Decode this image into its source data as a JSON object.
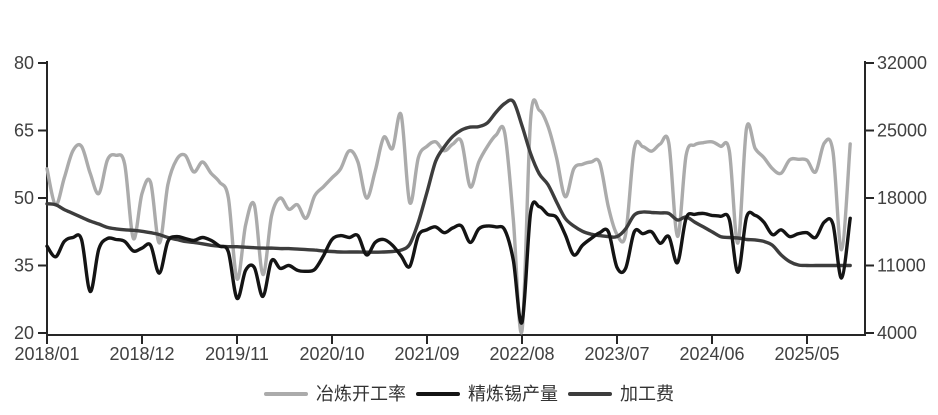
{
  "colors": {
    "axis": "#262626",
    "tick_label": "#404040",
    "series_gray": "#ababab",
    "series_black": "#141414",
    "series_darkgray": "#3d3d3d",
    "background": "#ffffff"
  },
  "chart_data": {
    "type": "line",
    "title": "",
    "grid": false,
    "legend_position": "bottom",
    "x_tick_labels": [
      "2018/01",
      "2018/12",
      "2019/11",
      "2020/10",
      "2021/09",
      "2022/08",
      "2023/07",
      "2024/06",
      "2025/05"
    ],
    "left_axis": {
      "ticks": [
        80,
        65,
        50,
        35,
        20
      ],
      "range": [
        20,
        80
      ]
    },
    "right_axis": {
      "ticks": [
        32000,
        25000,
        18000,
        11000,
        4000
      ],
      "range": [
        4000,
        32000
      ]
    },
    "months": [
      "2018/01",
      "2018/02",
      "2018/03",
      "2018/04",
      "2018/05",
      "2018/06",
      "2018/07",
      "2018/08",
      "2018/09",
      "2018/10",
      "2018/11",
      "2018/12",
      "2019/01",
      "2019/02",
      "2019/03",
      "2019/04",
      "2019/05",
      "2019/06",
      "2019/07",
      "2019/08",
      "2019/09",
      "2019/10",
      "2019/11",
      "2019/12",
      "2020/01",
      "2020/02",
      "2020/03",
      "2020/04",
      "2020/05",
      "2020/06",
      "2020/07",
      "2020/08",
      "2020/09",
      "2020/10",
      "2020/11",
      "2020/12",
      "2021/01",
      "2021/02",
      "2021/03",
      "2021/04",
      "2021/05",
      "2021/06",
      "2021/07",
      "2021/08",
      "2021/09",
      "2021/10",
      "2021/11",
      "2021/12",
      "2022/01",
      "2022/02",
      "2022/03",
      "2022/04",
      "2022/05",
      "2022/06",
      "2022/07",
      "2022/08",
      "2022/09",
      "2022/10",
      "2022/11",
      "2022/12",
      "2023/01",
      "2023/02",
      "2023/03",
      "2023/04",
      "2023/05",
      "2023/06",
      "2023/07",
      "2023/08",
      "2023/09",
      "2023/10",
      "2023/11",
      "2023/12",
      "2024/01",
      "2024/02",
      "2024/03",
      "2024/04",
      "2024/05",
      "2024/06",
      "2024/07",
      "2024/08",
      "2024/09",
      "2024/10",
      "2024/11",
      "2024/12",
      "2025/01",
      "2025/02",
      "2025/03",
      "2025/04",
      "2025/05",
      "2025/06",
      "2025/07",
      "2025/08",
      "2025/09",
      "2025/10"
    ],
    "series": [
      {
        "name": "冶炼开工率",
        "axis": "left",
        "color": "#ababab",
        "values": [
          56.5,
          48.5,
          54.5,
          60.5,
          61.5,
          55.5,
          51.0,
          58.5,
          59.5,
          57.5,
          41.0,
          51.0,
          53.5,
          40.0,
          53.0,
          58.5,
          59.5,
          55.8,
          58.0,
          55.5,
          53.5,
          50.0,
          32.0,
          44.0,
          48.5,
          33.0,
          46.0,
          50.0,
          47.5,
          48.5,
          45.5,
          50.5,
          52.5,
          54.5,
          56.5,
          60.5,
          58.0,
          50.0,
          56.0,
          63.5,
          61.0,
          68.5,
          49.0,
          59.0,
          61.5,
          62.5,
          60.5,
          62.0,
          62.5,
          52.5,
          58.0,
          61.5,
          64.0,
          64.5,
          45.0,
          20.5,
          67.5,
          69.5,
          66.0,
          59.0,
          50.3,
          56.5,
          57.5,
          58.0,
          57.8,
          48.0,
          41.9,
          41.9,
          61.0,
          61.4,
          60.4,
          62.0,
          62.2,
          41.5,
          59.5,
          61.8,
          62.3,
          62.5,
          61.5,
          60.5,
          40.0,
          65.5,
          61.0,
          59.0,
          56.5,
          55.5,
          58.5,
          58.6,
          58.4,
          55.8,
          62.2,
          60.4,
          38.5,
          62.0
        ]
      },
      {
        "name": "精炼锡产量",
        "axis": "right",
        "color": "#141414",
        "values": [
          13000,
          11900,
          13500,
          13900,
          13700,
          8300,
          12700,
          13800,
          13700,
          13500,
          12500,
          12800,
          13100,
          10200,
          13500,
          14000,
          13800,
          13600,
          13900,
          13600,
          13000,
          12400,
          7600,
          10500,
          10800,
          7800,
          11500,
          10700,
          11000,
          10500,
          10400,
          10600,
          12000,
          13700,
          14100,
          13900,
          14100,
          12100,
          13400,
          13700,
          13100,
          12000,
          10900,
          14100,
          14700,
          15000,
          14400,
          14900,
          15100,
          13400,
          14800,
          15100,
          15000,
          14700,
          11500,
          5100,
          16500,
          17100,
          16300,
          16000,
          14200,
          12100,
          13100,
          13800,
          14400,
          14500,
          10800,
          10700,
          14500,
          14300,
          14500,
          13300,
          14000,
          11300,
          15900,
          16300,
          16400,
          16200,
          16100,
          15800,
          10300,
          16000,
          16200,
          15500,
          14200,
          14700,
          14000,
          14300,
          14400,
          13900,
          15500,
          15300,
          9700,
          15900
        ]
      },
      {
        "name": "加工费",
        "axis": "right",
        "color": "#3d3d3d",
        "values": [
          17400,
          17300,
          16800,
          16400,
          16000,
          15600,
          15300,
          14950,
          14800,
          14700,
          14650,
          14550,
          14400,
          14200,
          13900,
          13700,
          13500,
          13400,
          13250,
          13100,
          13000,
          12950,
          12950,
          12900,
          12850,
          12800,
          12800,
          12750,
          12750,
          12700,
          12650,
          12600,
          12500,
          12450,
          12400,
          12400,
          12400,
          12380,
          12380,
          12400,
          12450,
          12600,
          13200,
          15500,
          18600,
          21800,
          23300,
          24400,
          25050,
          25350,
          25400,
          25800,
          26900,
          27800,
          28000,
          25500,
          22600,
          20500,
          19400,
          17600,
          15900,
          15100,
          14550,
          14250,
          14100,
          14000,
          14000,
          14800,
          16240,
          16550,
          16500,
          16450,
          16400,
          15720,
          16030,
          15500,
          15000,
          14500,
          14000,
          13900,
          13850,
          13700,
          13650,
          13500,
          13100,
          12100,
          11400,
          11050,
          11000,
          11000,
          11000,
          11000,
          11000,
          11000
        ]
      }
    ]
  },
  "legend": {
    "items": [
      "冶炼开工率",
      "精炼锡产量",
      "加工费"
    ]
  }
}
